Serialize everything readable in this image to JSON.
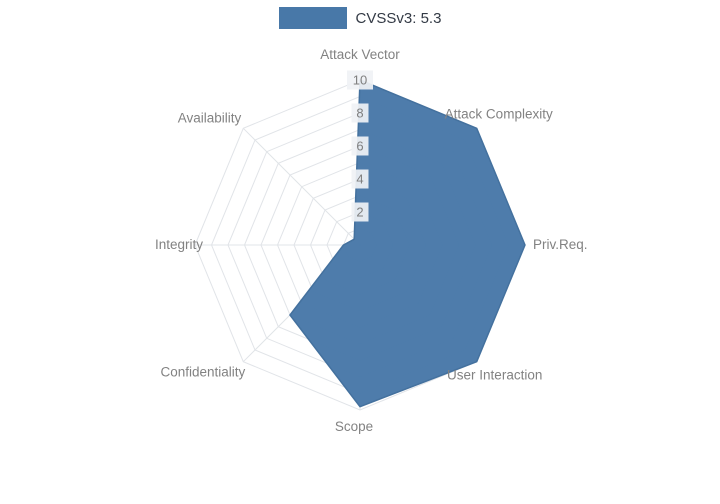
{
  "legend": {
    "label": "CVSSv3: 5.3"
  },
  "chart_data": {
    "type": "radar",
    "title": "CVSSv3: 5.3",
    "axes": [
      "Attack Vector",
      "Attack Complexity",
      "Priv.Req.",
      "User Interaction",
      "Scope",
      "Confidentiality",
      "Integrity",
      "Availability"
    ],
    "series": [
      {
        "name": "CVSSv3: 5.3",
        "values": [
          10,
          10,
          10,
          10,
          9.8,
          6,
          1,
          0.5
        ]
      }
    ],
    "radial_range": [
      0,
      10
    ],
    "radial_ticks": [
      2,
      4,
      6,
      8,
      10
    ],
    "grid": true,
    "grid_shape": "polygon",
    "legend_position": "top-center",
    "colors": {
      "fill": "#4878a8",
      "stroke": "#44719e",
      "grid": "#e1e4e8",
      "axis_label": "#828282",
      "tick_label": "#7f7f7f",
      "tick_bg": "#f0f2f5",
      "legend_text": "#333a45"
    }
  }
}
